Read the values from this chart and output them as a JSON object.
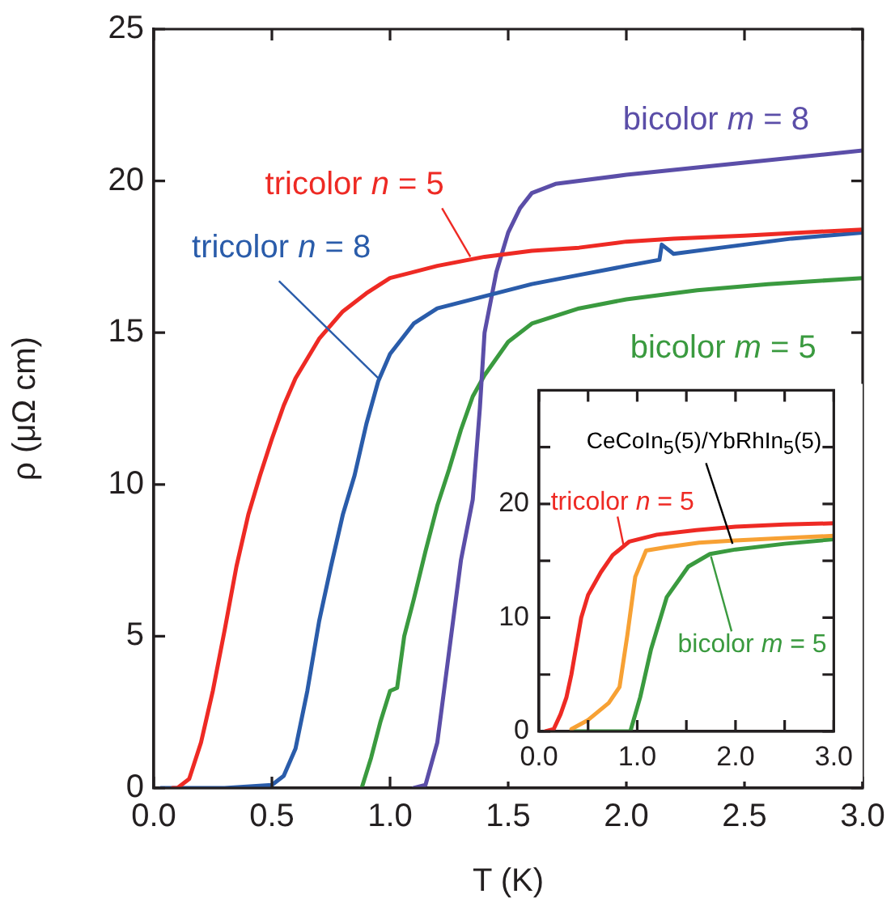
{
  "chart_data": [
    {
      "type": "line",
      "xlabel": "T (K)",
      "ylabel": "ρ (μΩ cm)",
      "xlim": [
        0,
        3
      ],
      "ylim": [
        0,
        25
      ],
      "xticks": [
        {
          "value": 0,
          "label": "0.0"
        },
        {
          "value": 0.5,
          "label": "0.5"
        },
        {
          "value": 1,
          "label": "1.0"
        },
        {
          "value": 1.5,
          "label": "1.5"
        },
        {
          "value": 2,
          "label": "2.0"
        },
        {
          "value": 2.5,
          "label": "2.5"
        },
        {
          "value": 3,
          "label": "3.0"
        }
      ],
      "yticks": [
        0,
        5,
        10,
        15,
        20,
        25
      ],
      "marker": "none",
      "line_style": "solid",
      "legend": false,
      "series": [
        {
          "name": "tricolor n = 5",
          "color": "#ee2a24",
          "x": [
            0.08,
            0.1,
            0.15,
            0.2,
            0.25,
            0.3,
            0.35,
            0.4,
            0.45,
            0.5,
            0.55,
            0.6,
            0.7,
            0.8,
            0.9,
            1.0,
            1.2,
            1.4,
            1.6,
            1.8,
            2.0,
            2.2,
            2.5,
            3.0
          ],
          "values": [
            0,
            0,
            0.3,
            1.5,
            3.2,
            5.2,
            7.3,
            9,
            10.3,
            11.5,
            12.6,
            13.5,
            14.8,
            15.7,
            16.3,
            16.8,
            17.2,
            17.5,
            17.7,
            17.8,
            18,
            18.1,
            18.2,
            18.4
          ]
        },
        {
          "name": "tricolor n = 8",
          "color": "#2a5caa",
          "x": [
            0.03,
            0.3,
            0.5,
            0.55,
            0.6,
            0.65,
            0.7,
            0.75,
            0.8,
            0.85,
            0.9,
            0.95,
            1.0,
            1.1,
            1.2,
            1.4,
            1.6,
            1.8,
            2.0,
            2.14,
            2.15,
            2.2,
            2.4,
            2.7,
            3.0
          ],
          "values": [
            0,
            0,
            0.1,
            0.4,
            1.3,
            3.2,
            5.5,
            7.3,
            9,
            10.3,
            12,
            13.4,
            14.3,
            15.3,
            15.8,
            16.2,
            16.6,
            16.9,
            17.2,
            17.4,
            17.9,
            17.6,
            17.8,
            18.1,
            18.3
          ]
        },
        {
          "name": "bicolor m = 8",
          "color": "#5b4ea8",
          "x": [
            1.1,
            1.15,
            1.2,
            1.25,
            1.3,
            1.35,
            1.38,
            1.4,
            1.45,
            1.5,
            1.55,
            1.6,
            1.7,
            2.0,
            2.5,
            3.0
          ],
          "values": [
            0,
            0.1,
            1.5,
            4.5,
            7.5,
            9.5,
            12.5,
            15,
            17,
            18.3,
            19.1,
            19.6,
            19.9,
            20.2,
            20.6,
            21
          ]
        },
        {
          "name": "bicolor m = 5",
          "color": "#3a9a3f",
          "x": [
            0.88,
            0.92,
            0.96,
            1.0,
            1.03,
            1.06,
            1.1,
            1.15,
            1.2,
            1.25,
            1.3,
            1.35,
            1.4,
            1.5,
            1.6,
            1.8,
            2.0,
            2.3,
            2.6,
            3.0
          ],
          "values": [
            0,
            1,
            2.2,
            3.2,
            3.3,
            5,
            6.2,
            7.8,
            9.3,
            10.5,
            11.8,
            12.9,
            13.6,
            14.7,
            15.3,
            15.8,
            16.1,
            16.4,
            16.6,
            16.8
          ]
        }
      ]
    },
    {
      "type": "line",
      "xlim": [
        0,
        3
      ],
      "ylim": [
        0,
        30
      ],
      "xticks": [
        {
          "value": 0,
          "label": "0.0"
        },
        {
          "value": 0.5,
          "label": null
        },
        {
          "value": 1,
          "label": "1.0"
        },
        {
          "value": 1.5,
          "label": null
        },
        {
          "value": 2,
          "label": "2.0"
        },
        {
          "value": 2.5,
          "label": null
        },
        {
          "value": 3,
          "label": "3.0"
        }
      ],
      "yticks": [
        0,
        {
          "value": 5,
          "label": null
        },
        10,
        {
          "value": 15,
          "label": null
        },
        20,
        {
          "value": 25,
          "label": null
        }
      ],
      "marker": "none",
      "line_style": "solid",
      "legend": false,
      "series": [
        {
          "name": "tricolor n = 5",
          "color": "#ee2a24",
          "x": [
            0.065,
            0.15,
            0.22,
            0.28,
            0.33,
            0.38,
            0.43,
            0.5,
            0.63,
            0.75,
            0.92,
            1.2,
            1.6,
            2.0,
            2.5,
            3.0
          ],
          "values": [
            0,
            0.2,
            1.5,
            3,
            5,
            7.5,
            10,
            12,
            14,
            15.5,
            16.7,
            17.3,
            17.7,
            18,
            18.2,
            18.3
          ]
        },
        {
          "name": "CeCoIn$_{5}$(5)/YbRhIn$_{5}$(5)",
          "color": "#f7a134",
          "x": [
            0.33,
            0.5,
            0.71,
            0.82,
            0.9,
            0.98,
            1.09,
            1.3,
            1.63,
            2.0,
            2.5,
            3.0
          ],
          "values": [
            0.2,
            1,
            2.5,
            3.9,
            8.5,
            13.6,
            15.9,
            16.2,
            16.6,
            16.8,
            17,
            17.2
          ]
        },
        {
          "name": "bicolor m = 5",
          "color": "#3a9a3f",
          "x": [
            0.33,
            0.6,
            0.93,
            1.03,
            1.14,
            1.3,
            1.52,
            1.74,
            2.0,
            2.5,
            3.0
          ],
          "values": [
            0,
            0,
            0,
            3,
            7.2,
            11.8,
            14.5,
            15.6,
            16,
            16.5,
            16.9
          ]
        }
      ]
    }
  ]
}
